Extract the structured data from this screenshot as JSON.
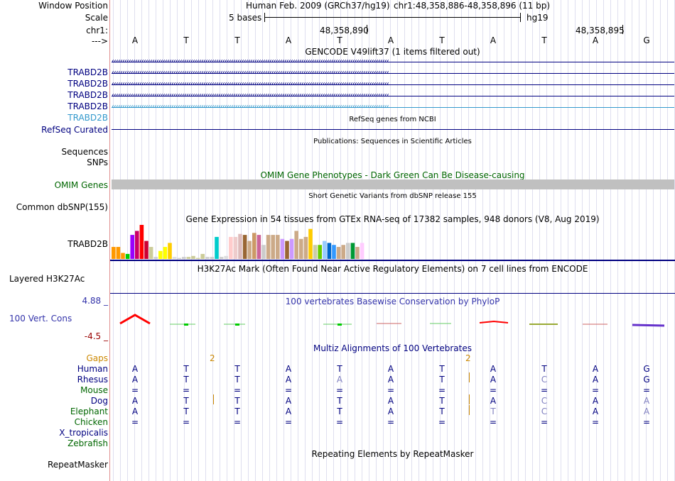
{
  "header": {
    "window_position_label": "Window Position",
    "scale_label": "Scale",
    "chrom_label": "chr1:",
    "strand_label": "--->",
    "assembly_text": "Human Feb. 2009 (GRCh37/hg19)",
    "position_text": "chr1:48,358,886-48,358,896 (11 bp)",
    "scale_text": "5 bases",
    "scale_db": "hg19",
    "coord_left": "48,358,890",
    "coord_right": "48,358,895",
    "bases": [
      "A",
      "T",
      "T",
      "A",
      "T",
      "A",
      "T",
      "A",
      "T",
      "A",
      "G"
    ]
  },
  "tracks": {
    "gencode_title": "GENCODE V49lift37 (1 items filtered out)",
    "gencode_items": [
      "TRABD2B",
      "TRABD2B",
      "TRABD2B",
      "TRABD2B",
      "TRABD2B"
    ],
    "refseq_title": "RefSeq genes from NCBI",
    "refseq_label": "RefSeq Curated",
    "pubs_title": "Publications: Sequences in Scientific Articles",
    "pubs_label_1": "Sequences",
    "pubs_label_2": "SNPs",
    "omim_title": "OMIM Gene Phenotypes - Dark Green Can Be Disease-causing",
    "omim_label": "OMIM Genes",
    "dbsnp_title": "Short Genetic Variants from dbSNP release 155",
    "dbsnp_label": "Common dbSNP(155)",
    "gtex_title": "Gene Expression in 54 tissues from GTEx RNA-seq of 17382 samples, 948 donors (V8, Aug 2019)",
    "gtex_label": "TRABD2B",
    "h3k27_title": "H3K27Ac Mark (Often Found Near Active Regulatory Elements) on 7 cell lines from ENCODE",
    "h3k27_label": "Layered H3K27Ac",
    "cons_title": "100 vertebrates Basewise Conservation by PhyloP",
    "cons_label": "100 Vert. Cons",
    "cons_max": "4.88 _",
    "cons_min": "-4.5 _",
    "multiz_title": "Multiz Alignments of 100 Vertebrates",
    "gaps_label": "Gaps",
    "gap_count_1": "2",
    "gap_count_2": "2",
    "species": [
      {
        "name": "Human",
        "bases": [
          "A",
          "T",
          "T",
          "A",
          "T",
          "A",
          "T",
          "A",
          "T",
          "A",
          "G"
        ]
      },
      {
        "name": "Rhesus",
        "bases": [
          "A",
          "T",
          "T",
          "A",
          "A",
          "A",
          "T",
          "A",
          "C",
          "A",
          "G"
        ]
      },
      {
        "name": "Mouse",
        "bases": [
          "=",
          "=",
          "=",
          "=",
          "=",
          "=",
          "=",
          "=",
          "=",
          "=",
          "="
        ]
      },
      {
        "name": "Dog",
        "bases": [
          "A",
          "T",
          "T",
          "A",
          "T",
          "A",
          "T",
          "A",
          "C",
          "A",
          "A"
        ]
      },
      {
        "name": "Elephant",
        "bases": [
          "A",
          "T",
          "T",
          "A",
          "T",
          "A",
          "T",
          "T",
          "C",
          "A",
          "A"
        ]
      },
      {
        "name": "Chicken",
        "bases": [
          "=",
          "=",
          "=",
          "=",
          "=",
          "=",
          "=",
          "=",
          "=",
          "=",
          "="
        ]
      },
      {
        "name": "X_tropicalis",
        "bases": []
      },
      {
        "name": "Zebrafish",
        "bases": []
      }
    ],
    "repeat_title": "Repeating Elements by RepeatMasker",
    "repeat_label": "RepeatMasker"
  },
  "gtex_values": [
    12,
    12,
    6,
    5,
    24,
    28,
    34,
    18,
    12,
    2,
    8,
    12,
    16,
    2,
    1,
    2,
    2,
    3,
    1,
    5,
    2,
    2,
    22,
    2,
    3,
    22,
    22,
    25,
    24,
    18,
    26,
    24,
    14,
    24,
    24,
    24,
    20,
    18,
    20,
    28,
    20,
    22,
    30,
    14,
    14,
    18,
    16,
    14,
    12,
    14,
    16,
    16,
    12,
    16
  ],
  "gtex_colors": [
    "#ff9900",
    "#ff9900",
    "#ff9900",
    "#00cc00",
    "#9900ff",
    "#cc0066",
    "#ff0000",
    "#cc0033",
    "#cccc99",
    "#cccccc",
    "#ffff00",
    "#ffff00",
    "#ffcc00",
    "#dddddd",
    "#cccccc",
    "#cccccc",
    "#cccc99",
    "#cccc99",
    "#cccc99",
    "#cccc99",
    "#cccccc",
    "#cccccc",
    "#00cccc",
    "#cccccc",
    "#dddddd",
    "#ffcccc",
    "#eecccc",
    "#ddbbbb",
    "#996633",
    "#ccaa88",
    "#cc9966",
    "#cc6699",
    "#cccccc",
    "#ccaa88",
    "#ccaa88",
    "#ccaa88",
    "#cc99ff",
    "#996633",
    "#cc99ff",
    "#ccaa88",
    "#ccaa88",
    "#ccaa88",
    "#ffcc00",
    "#ccccaa",
    "#66cc00",
    "#99ccff",
    "#0066cc",
    "#3399ff",
    "#ccaa88",
    "#ccaa88",
    "#cccccc",
    "#009933",
    "#ccaa88",
    "#ffccff"
  ],
  "colors": {
    "gene_blue": "#000080",
    "gene_light": "#3399cc",
    "omim_green": "#006600",
    "gaps_orange": "#cc8800",
    "cons_blue": "#3333aa",
    "cons_red": "#990000",
    "multiz_blue": "#000080",
    "pale_base": "#8080c0"
  }
}
